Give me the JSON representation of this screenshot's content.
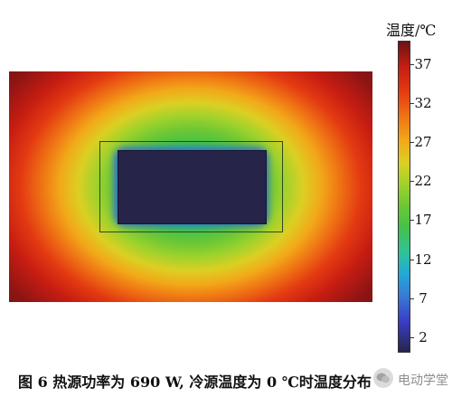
{
  "colorbar": {
    "title": "温度/℃",
    "tick_labels": [
      "37",
      "32",
      "27",
      "22",
      "17",
      "12",
      "7",
      "2"
    ],
    "tick_values": [
      37,
      32,
      27,
      22,
      17,
      12,
      7,
      2
    ],
    "range": [
      0,
      40
    ],
    "colors": [
      "#6a1313",
      "#c61d12",
      "#ef7314",
      "#f2a819",
      "#dccf23",
      "#6cc735",
      "#2fc39a",
      "#22a8d8",
      "#3a3ec8",
      "#27244a"
    ]
  },
  "plot": {
    "heat_source_color": "#27244a",
    "frame_color": "#2d4a21"
  },
  "caption": {
    "text": "图 6  热源功率为 690 W, 冷源温度为 0 ℃时温度分布"
  },
  "watermark": {
    "text": "电动学堂",
    "icon": "wechat-icon"
  }
}
